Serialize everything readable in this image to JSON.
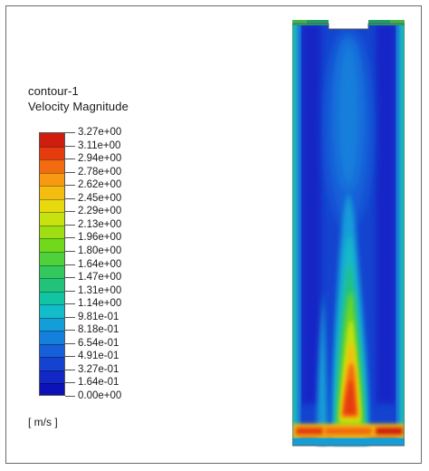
{
  "legend": {
    "contour_name": "contour-1",
    "variable": "Velocity Magnitude",
    "units": "[ m/s ]",
    "levels": [
      "3.27e+00",
      "3.11e+00",
      "2.94e+00",
      "2.78e+00",
      "2.62e+00",
      "2.45e+00",
      "2.29e+00",
      "2.13e+00",
      "1.96e+00",
      "1.80e+00",
      "1.64e+00",
      "1.47e+00",
      "1.31e+00",
      "1.14e+00",
      "9.81e-01",
      "8.18e-01",
      "6.54e-01",
      "4.91e-01",
      "3.27e-01",
      "1.64e-01",
      "0.00e+00"
    ],
    "colors": [
      "#cf1d10",
      "#e63a0f",
      "#f26b10",
      "#f79a12",
      "#f5bd10",
      "#e8d80e",
      "#c7e20e",
      "#9fde12",
      "#72d81c",
      "#4fd13a",
      "#33c85c",
      "#22c27a",
      "#13c4a2",
      "#12bcc8",
      "#139ed8",
      "#1480dc",
      "#1560d8",
      "#1443d0",
      "#1228c6",
      "#0c12b8"
    ]
  }
}
